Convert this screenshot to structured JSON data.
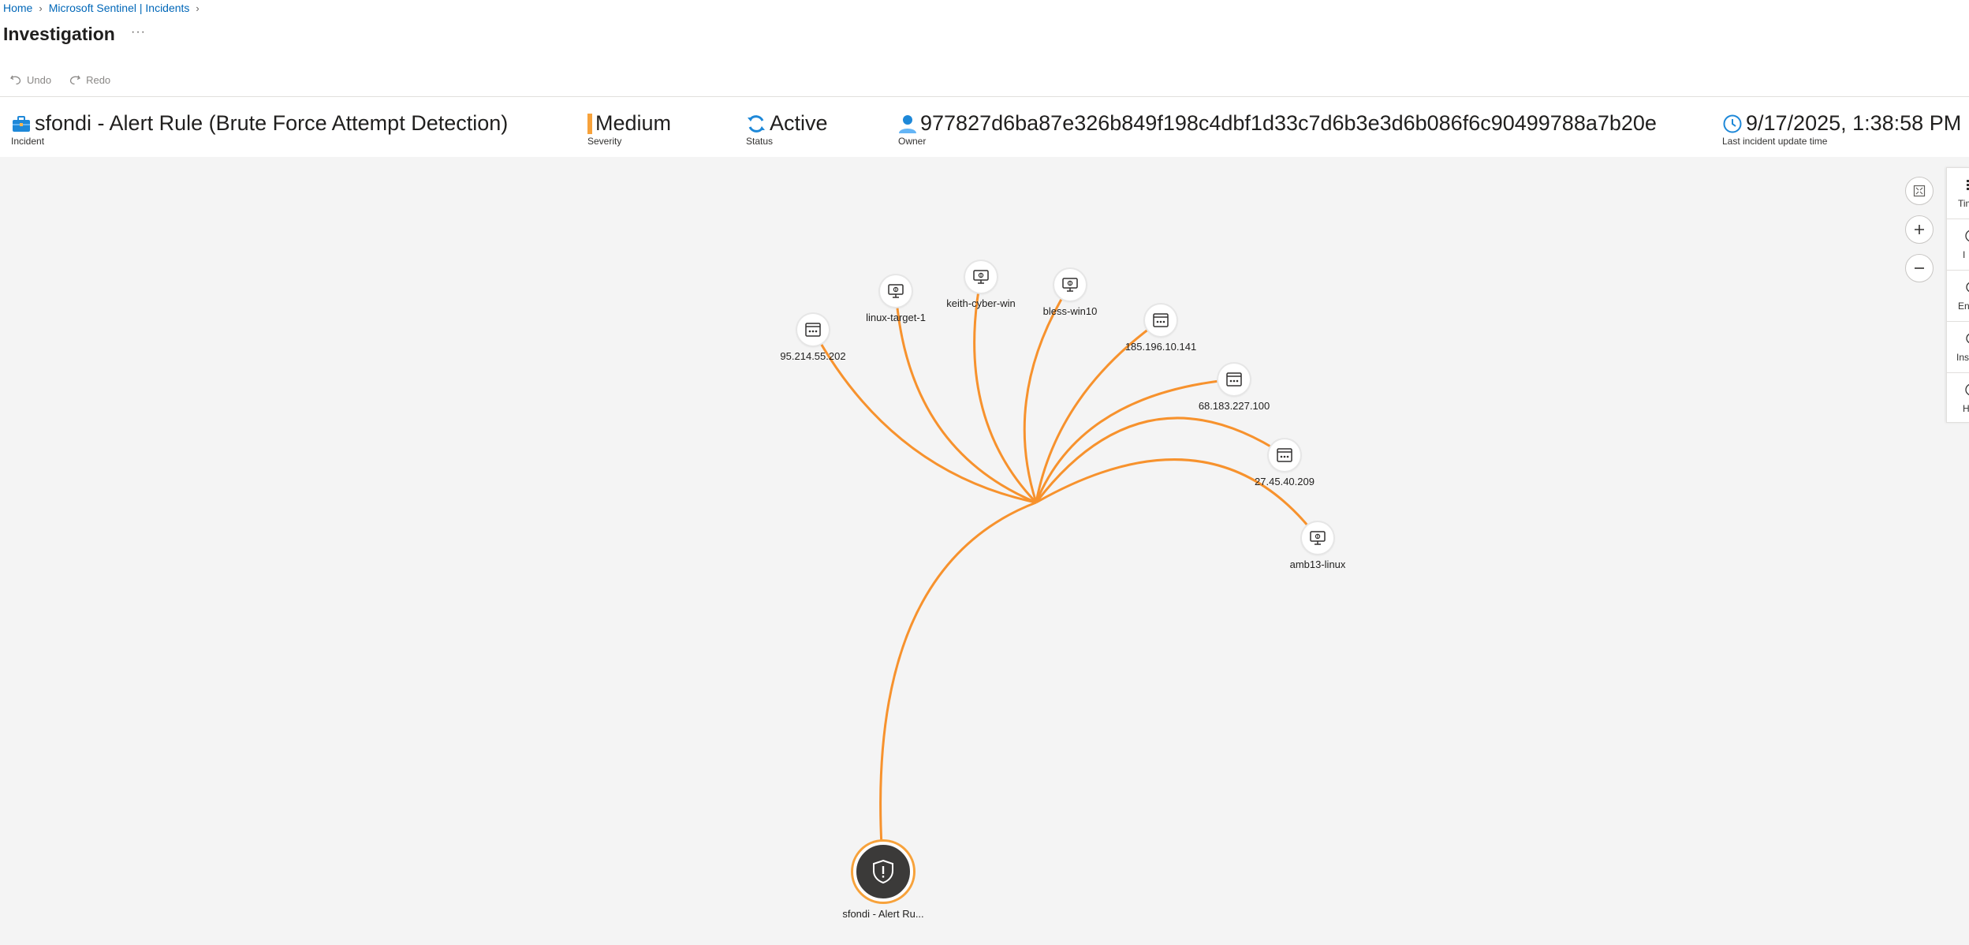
{
  "breadcrumb": {
    "items": [
      "Home",
      "Microsoft Sentinel | Incidents"
    ]
  },
  "page": {
    "title": "Investigation",
    "more": "···"
  },
  "toolbar": {
    "undo": "Undo",
    "redo": "Redo"
  },
  "incident": {
    "title": "sfondi - Alert Rule (Brute Force Attempt Detection)",
    "title_label": "Incident",
    "severity": "Medium",
    "severity_label": "Severity",
    "severity_color": "#f7a23b",
    "status": "Active",
    "status_label": "Status",
    "owner": "977827d6ba87e326b849f198c4dbf1d33c7d6b3e3d6b086f6c90499788a7b20e",
    "owner_label": "Owner",
    "updated": "9/17/2025, 1:38:58 PM",
    "updated_label": "Last incident update time"
  },
  "graph": {
    "edge_color": "#f7922d",
    "alert": {
      "label": "sfondi - Alert Ru...",
      "icon": "shield-alert-icon"
    },
    "entities": [
      {
        "label": "95.214.55.202",
        "type": "ip",
        "icon": "ip-address-icon"
      },
      {
        "label": "linux-target-1",
        "type": "host",
        "icon": "host-icon"
      },
      {
        "label": "keith-cyber-win",
        "type": "host",
        "icon": "host-icon"
      },
      {
        "label": "bless-win10",
        "type": "host",
        "icon": "host-icon"
      },
      {
        "label": "185.196.10.141",
        "type": "ip",
        "icon": "ip-address-icon"
      },
      {
        "label": "68.183.227.100",
        "type": "ip",
        "icon": "ip-address-icon"
      },
      {
        "label": "27.45.40.209",
        "type": "ip",
        "icon": "ip-address-icon"
      },
      {
        "label": "amb13-linux",
        "type": "host",
        "icon": "host-icon"
      }
    ]
  },
  "right_panel": {
    "items": [
      "Tim",
      "I",
      "En",
      "Ins",
      "H"
    ]
  }
}
